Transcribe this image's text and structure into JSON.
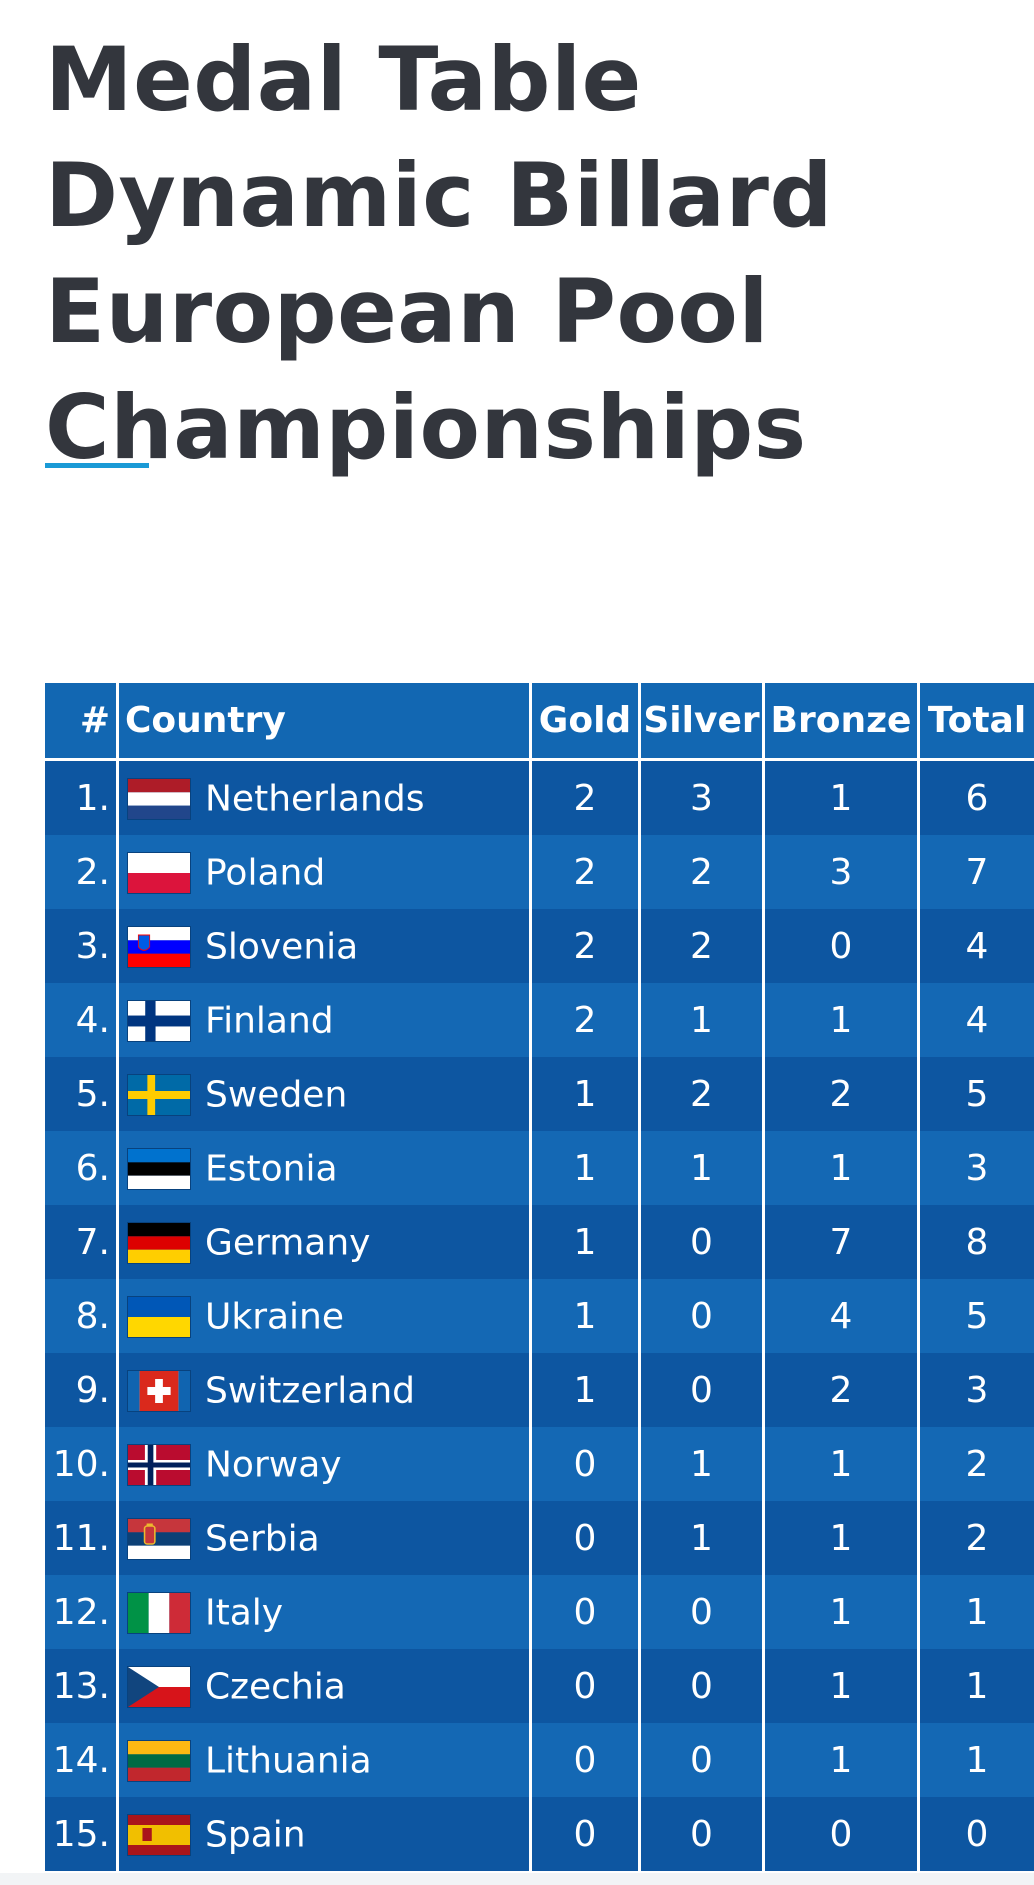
{
  "title_lines": [
    "Medal Table",
    "Dynamic Billard",
    "European Pool",
    "Championships"
  ],
  "accent_color": "#1a9ad6",
  "table": {
    "headers": {
      "rank": "#",
      "country": "Country",
      "gold": "Gold",
      "silver": "Silver",
      "bronze": "Bronze",
      "total": "Total"
    },
    "header_bg": "#1267b2",
    "row_bg_dark": "#0d56a1",
    "row_bg_light": "#1468b4",
    "rows": [
      {
        "rank": "1.",
        "country": "Netherlands",
        "flag": "netherlands-flag-icon",
        "gold": "2",
        "silver": "3",
        "bronze": "1",
        "total": "6"
      },
      {
        "rank": "2.",
        "country": "Poland",
        "flag": "poland-flag-icon",
        "gold": "2",
        "silver": "2",
        "bronze": "3",
        "total": "7"
      },
      {
        "rank": "3.",
        "country": "Slovenia",
        "flag": "slovenia-flag-icon",
        "gold": "2",
        "silver": "2",
        "bronze": "0",
        "total": "4"
      },
      {
        "rank": "4.",
        "country": "Finland",
        "flag": "finland-flag-icon",
        "gold": "2",
        "silver": "1",
        "bronze": "1",
        "total": "4"
      },
      {
        "rank": "5.",
        "country": "Sweden",
        "flag": "sweden-flag-icon",
        "gold": "1",
        "silver": "2",
        "bronze": "2",
        "total": "5"
      },
      {
        "rank": "6.",
        "country": "Estonia",
        "flag": "estonia-flag-icon",
        "gold": "1",
        "silver": "1",
        "bronze": "1",
        "total": "3"
      },
      {
        "rank": "7.",
        "country": "Germany",
        "flag": "germany-flag-icon",
        "gold": "1",
        "silver": "0",
        "bronze": "7",
        "total": "8"
      },
      {
        "rank": "8.",
        "country": "Ukraine",
        "flag": "ukraine-flag-icon",
        "gold": "1",
        "silver": "0",
        "bronze": "4",
        "total": "5"
      },
      {
        "rank": "9.",
        "country": "Switzerland",
        "flag": "switzerland-flag-icon",
        "gold": "1",
        "silver": "0",
        "bronze": "2",
        "total": "3"
      },
      {
        "rank": "10.",
        "country": "Norway",
        "flag": "norway-flag-icon",
        "gold": "0",
        "silver": "1",
        "bronze": "1",
        "total": "2"
      },
      {
        "rank": "11.",
        "country": "Serbia",
        "flag": "serbia-flag-icon",
        "gold": "0",
        "silver": "1",
        "bronze": "1",
        "total": "2"
      },
      {
        "rank": "12.",
        "country": "Italy",
        "flag": "italy-flag-icon",
        "gold": "0",
        "silver": "0",
        "bronze": "1",
        "total": "1"
      },
      {
        "rank": "13.",
        "country": "Czechia",
        "flag": "czechia-flag-icon",
        "gold": "0",
        "silver": "0",
        "bronze": "1",
        "total": "1"
      },
      {
        "rank": "14.",
        "country": "Lithuania",
        "flag": "lithuania-flag-icon",
        "gold": "0",
        "silver": "0",
        "bronze": "1",
        "total": "1"
      },
      {
        "rank": "15.",
        "country": "Spain",
        "flag": "spain-flag-icon",
        "gold": "0",
        "silver": "0",
        "bronze": "0",
        "total": "0"
      }
    ]
  }
}
